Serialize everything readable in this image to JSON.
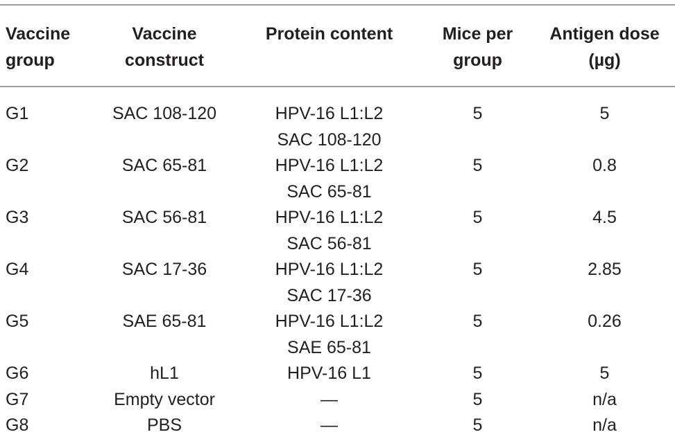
{
  "table": {
    "headers": [
      [
        "Vaccine",
        "group"
      ],
      [
        "Vaccine",
        "construct"
      ],
      [
        "Protein content"
      ],
      [
        "Mice per",
        "group"
      ],
      [
        "Antigen dose",
        "(µg)"
      ]
    ],
    "rows": [
      {
        "group": "G1",
        "construct": "SAC 108-120",
        "protein": [
          "HPV-16 L1:L2",
          "SAC 108-120"
        ],
        "mice": "5",
        "dose": "5"
      },
      {
        "group": "G2",
        "construct": "SAC 65-81",
        "protein": [
          "HPV-16 L1:L2",
          "SAC 65-81"
        ],
        "mice": "5",
        "dose": "0.8"
      },
      {
        "group": "G3",
        "construct": "SAC 56-81",
        "protein": [
          "HPV-16 L1:L2",
          "SAC 56-81"
        ],
        "mice": "5",
        "dose": "4.5"
      },
      {
        "group": "G4",
        "construct": "SAC 17-36",
        "protein": [
          "HPV-16 L1:L2",
          "SAC 17-36"
        ],
        "mice": "5",
        "dose": "2.85"
      },
      {
        "group": "G5",
        "construct": "SAE 65-81",
        "protein": [
          "HPV-16 L1:L2",
          "SAE 65-81"
        ],
        "mice": "5",
        "dose": "0.26"
      },
      {
        "group": "G6",
        "construct": "hL1",
        "protein": [
          "HPV-16 L1"
        ],
        "mice": "5",
        "dose": "5"
      },
      {
        "group": "G7",
        "construct": "Empty vector",
        "protein": [
          "—"
        ],
        "mice": "5",
        "dose": "n/a"
      },
      {
        "group": "G8",
        "construct": "PBS",
        "protein": [
          "—"
        ],
        "mice": "5",
        "dose": "n/a"
      }
    ]
  }
}
